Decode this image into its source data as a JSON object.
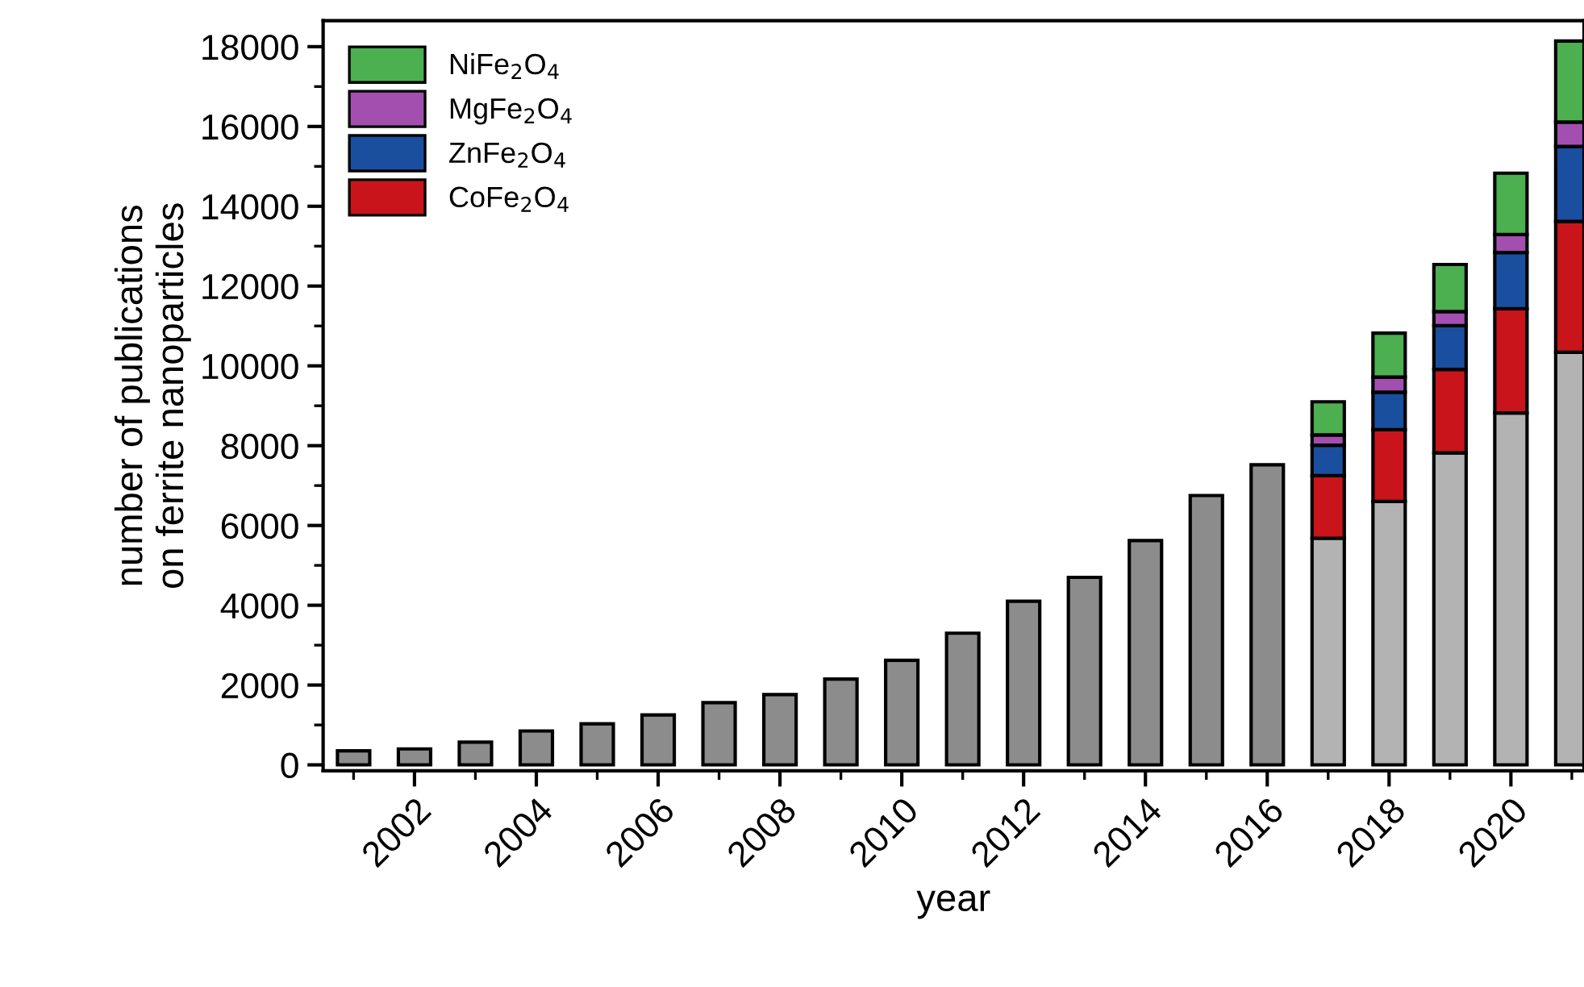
{
  "chart_data": {
    "type": "bar",
    "stacked": true,
    "xlabel": "year",
    "ylabel": "number of publications\non ferrite nanoparticles",
    "x": [
      2001,
      2002,
      2003,
      2004,
      2005,
      2006,
      2007,
      2008,
      2009,
      2010,
      2011,
      2012,
      2013,
      2014,
      2015,
      2016,
      2017,
      2018,
      2019,
      2020,
      2021
    ],
    "series": [
      {
        "colors": [
          "#8c8c8c",
          "#8c8c8c",
          "#8c8c8c",
          "#8c8c8c",
          "#8c8c8c",
          "#8c8c8c",
          "#8c8c8c",
          "#8c8c8c",
          "#8c8c8c",
          "#8c8c8c",
          "#8c8c8c",
          "#8c8c8c",
          "#8c8c8c",
          "#8c8c8c",
          "#8c8c8c",
          "#8c8c8c",
          "#b3b3b3",
          "#b3b3b3",
          "#b3b3b3",
          "#b3b3b3",
          "#b3b3b3"
        ],
        "values": [
          350,
          400,
          570,
          850,
          1030,
          1250,
          1560,
          1760,
          2150,
          2620,
          3300,
          4100,
          4700,
          5620,
          6750,
          7520,
          5680,
          6600,
          7820,
          8820,
          10340
        ]
      },
      {
        "name": "CoFe$_{2}$O$_{4}$",
        "color": "#c8141a",
        "values": [
          null,
          null,
          null,
          null,
          null,
          null,
          null,
          null,
          null,
          null,
          null,
          null,
          null,
          null,
          null,
          null,
          1570,
          1800,
          2090,
          2610,
          3280
        ]
      },
      {
        "name": "ZnFe$_{2}$O$_{4}$",
        "color": "#1a4fa0",
        "values": [
          null,
          null,
          null,
          null,
          null,
          null,
          null,
          null,
          null,
          null,
          null,
          null,
          null,
          null,
          null,
          null,
          760,
          940,
          1100,
          1410,
          1880
        ]
      },
      {
        "name": "MgFe$_{2}$O$_{4}$",
        "color": "#a24fb0",
        "values": [
          null,
          null,
          null,
          null,
          null,
          null,
          null,
          null,
          null,
          null,
          null,
          null,
          null,
          null,
          null,
          null,
          260,
          380,
          350,
          450,
          610
        ]
      },
      {
        "name": "NiFe$_{2}$O$_{4}$",
        "color": "#4caf50",
        "values": [
          null,
          null,
          null,
          null,
          null,
          null,
          null,
          null,
          null,
          null,
          null,
          null,
          null,
          null,
          null,
          null,
          830,
          1100,
          1180,
          1540,
          2030
        ]
      }
    ],
    "xlim": [
      2000.5,
      2021.2
    ],
    "xticks": [
      2002,
      2004,
      2006,
      2008,
      2010,
      2012,
      2014,
      2016,
      2018,
      2020
    ],
    "ylim": [
      -150,
      18650
    ],
    "yticks": [
      0,
      2000,
      4000,
      6000,
      8000,
      10000,
      12000,
      14000,
      16000,
      18000
    ],
    "legend": "top left"
  }
}
